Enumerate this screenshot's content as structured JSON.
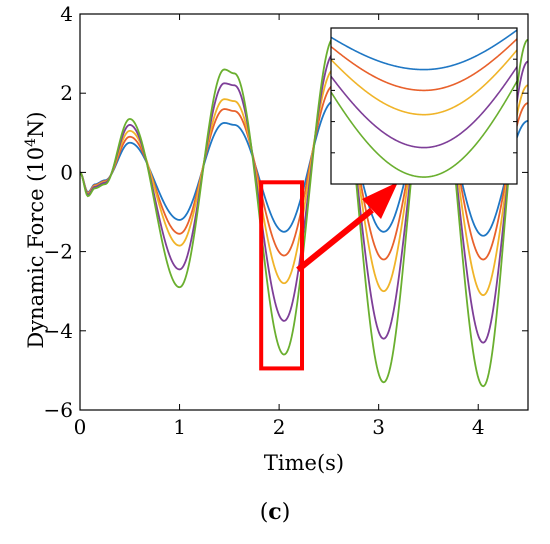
{
  "chart_data": {
    "type": "line",
    "xlabel": "Time(s)",
    "ylabel_main": "Dynamic Force (10",
    "ylabel_exp": "4",
    "ylabel_unit": "N)",
    "xlim": [
      0,
      4.5
    ],
    "ylim": [
      -6,
      4
    ],
    "xticks": [
      {
        "value": 0,
        "label": "0"
      },
      {
        "value": 1,
        "label": "1"
      },
      {
        "value": 2,
        "label": "2"
      },
      {
        "value": 3,
        "label": "3"
      },
      {
        "value": 4,
        "label": "4"
      }
    ],
    "yticks": [
      {
        "value": 4,
        "label": "4"
      },
      {
        "value": 2,
        "label": "2"
      },
      {
        "value": 0,
        "label": "0"
      },
      {
        "value": -2,
        "label": "−2"
      },
      {
        "value": -4,
        "label": "−4"
      },
      {
        "value": -6,
        "label": "−6"
      }
    ],
    "grid": false,
    "legend": "none",
    "series": [
      {
        "color": "#1f77c4",
        "x": [
          0,
          0.08,
          0.15,
          0.25,
          0.5,
          1.0,
          1.45,
          1.55,
          2.05,
          2.55,
          3.05,
          3.55,
          4.05,
          4.5
        ],
        "y": [
          0,
          -0.5,
          -0.3,
          -0.2,
          0.75,
          -1.2,
          1.25,
          1.2,
          -1.5,
          1.8,
          -1.5,
          1.9,
          -1.6,
          1.3
        ]
      },
      {
        "color": "#e8612c",
        "x": [
          0,
          0.08,
          0.15,
          0.25,
          0.5,
          1.0,
          1.45,
          1.55,
          2.05,
          2.55,
          3.05,
          3.55,
          4.05,
          4.5
        ],
        "y": [
          0,
          -0.52,
          -0.32,
          -0.22,
          0.9,
          -1.55,
          1.6,
          1.55,
          -2.1,
          2.2,
          -2.2,
          2.3,
          -2.2,
          1.75
        ]
      },
      {
        "color": "#f0b429",
        "x": [
          0,
          0.08,
          0.15,
          0.25,
          0.5,
          1.0,
          1.45,
          1.55,
          2.05,
          2.55,
          3.05,
          3.55,
          4.05,
          4.5
        ],
        "y": [
          0,
          -0.54,
          -0.34,
          -0.24,
          1.05,
          -1.85,
          1.85,
          1.8,
          -2.8,
          2.6,
          -3.0,
          2.7,
          -3.1,
          2.2
        ]
      },
      {
        "color": "#7e3f98",
        "x": [
          0,
          0.08,
          0.15,
          0.25,
          0.5,
          1.0,
          1.45,
          1.55,
          2.05,
          2.55,
          3.05,
          3.55,
          4.05,
          4.5
        ],
        "y": [
          0,
          -0.56,
          -0.36,
          -0.26,
          1.2,
          -2.45,
          2.25,
          2.2,
          -3.75,
          3.0,
          -4.2,
          3.1,
          -4.3,
          2.8
        ]
      },
      {
        "color": "#6aaf2f",
        "x": [
          0,
          0.08,
          0.15,
          0.25,
          0.5,
          1.0,
          1.45,
          1.55,
          2.05,
          2.55,
          3.05,
          3.55,
          4.05,
          4.5
        ],
        "y": [
          0,
          -0.6,
          -0.4,
          -0.3,
          1.35,
          -2.9,
          2.6,
          2.5,
          -4.6,
          3.4,
          -5.3,
          3.5,
          -5.4,
          3.35
        ]
      }
    ],
    "highlight_box": {
      "x": [
        1.82,
        2.23
      ],
      "y": [
        -4.95,
        -0.25
      ],
      "color": "#ff0000"
    },
    "inset": {
      "xlim": [
        1.85,
        2.25
      ],
      "ylim": [
        -4.8,
        -0.3
      ]
    }
  },
  "caption": {
    "open": "(",
    "letter": "c",
    "close": ")"
  }
}
